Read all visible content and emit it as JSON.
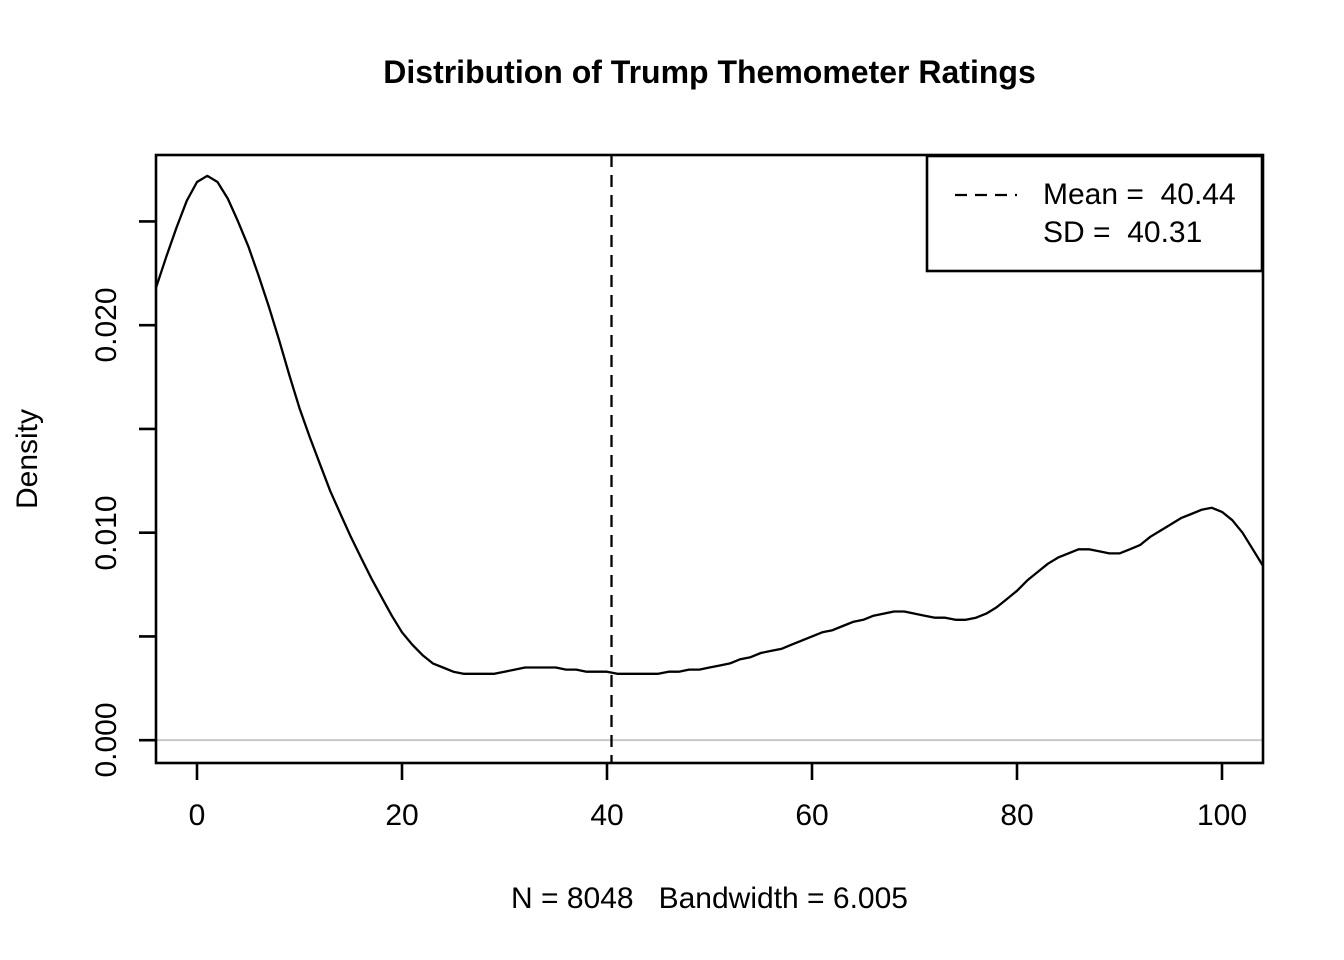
{
  "title": "Distribution of Trump Themometer Ratings",
  "colors": {
    "background": "#ffffff",
    "foreground": "#000000",
    "zero_line": "#c9c9c9"
  },
  "chart_data": {
    "type": "line",
    "subtype": "kernel-density",
    "title": "Distribution of Trump Themometer Ratings",
    "xlabel": "N = 8048   Bandwidth = 6.005",
    "ylabel": "Density",
    "n": 8048,
    "bandwidth": 6.005,
    "mean": 40.44,
    "sd": 40.31,
    "grid": false,
    "xlim": [
      -4,
      104
    ],
    "ylim": [
      -0.0011,
      0.0282
    ],
    "x_ticks": [
      {
        "value": 0,
        "label": "0"
      },
      {
        "value": 20,
        "label": "20"
      },
      {
        "value": 40,
        "label": "40"
      },
      {
        "value": 60,
        "label": "60"
      },
      {
        "value": 80,
        "label": "80"
      },
      {
        "value": 100,
        "label": "100"
      }
    ],
    "y_ticks": [
      {
        "value": 0.0,
        "label": "0.000"
      },
      {
        "value": 0.005,
        "label": ""
      },
      {
        "value": 0.01,
        "label": "0.010"
      },
      {
        "value": 0.015,
        "label": ""
      },
      {
        "value": 0.02,
        "label": "0.020"
      },
      {
        "value": 0.025,
        "label": ""
      }
    ],
    "legend": {
      "position": "topright",
      "entries": [
        {
          "label": "Mean =  40.44",
          "line_style": "dashed"
        },
        {
          "label": "SD =  40.31",
          "line_style": null
        }
      ]
    },
    "reference_lines": [
      {
        "orientation": "vertical",
        "value": 40.44,
        "style": "dashed",
        "color": "#000000"
      },
      {
        "orientation": "horizontal",
        "value": 0,
        "style": "solid",
        "color": "#c9c9c9"
      }
    ],
    "series": [
      {
        "name": "density",
        "color": "#000000",
        "x": [
          -4,
          -3,
          -2,
          -1,
          0,
          1,
          2,
          3,
          4,
          5,
          6,
          7,
          8,
          9,
          10,
          11,
          12,
          13,
          14,
          15,
          16,
          17,
          18,
          19,
          20,
          21,
          22,
          23,
          24,
          25,
          26,
          27,
          28,
          29,
          30,
          31,
          32,
          33,
          34,
          35,
          36,
          37,
          38,
          39,
          40,
          41,
          42,
          43,
          44,
          45,
          46,
          47,
          48,
          49,
          50,
          51,
          52,
          53,
          54,
          55,
          56,
          57,
          58,
          59,
          60,
          61,
          62,
          63,
          64,
          65,
          66,
          67,
          68,
          69,
          70,
          71,
          72,
          73,
          74,
          75,
          76,
          77,
          78,
          79,
          80,
          81,
          82,
          83,
          84,
          85,
          86,
          87,
          88,
          89,
          90,
          91,
          92,
          93,
          94,
          95,
          96,
          97,
          98,
          99,
          100,
          101,
          102,
          103,
          104
        ],
        "y": [
          0.0218,
          0.0233,
          0.0247,
          0.026,
          0.0269,
          0.0272,
          0.0269,
          0.0261,
          0.025,
          0.0238,
          0.0224,
          0.0209,
          0.0193,
          0.0176,
          0.016,
          0.0146,
          0.0133,
          0.012,
          0.0109,
          0.0098,
          0.0088,
          0.0078,
          0.0069,
          0.006,
          0.0052,
          0.0046,
          0.0041,
          0.0037,
          0.0035,
          0.0033,
          0.0032,
          0.0032,
          0.0032,
          0.0032,
          0.0033,
          0.0034,
          0.0035,
          0.0035,
          0.0035,
          0.0035,
          0.0034,
          0.0034,
          0.0033,
          0.0033,
          0.0033,
          0.0032,
          0.0032,
          0.0032,
          0.0032,
          0.0032,
          0.0033,
          0.0033,
          0.0034,
          0.0034,
          0.0035,
          0.0036,
          0.0037,
          0.0039,
          0.004,
          0.0042,
          0.0043,
          0.0044,
          0.0046,
          0.0048,
          0.005,
          0.0052,
          0.0053,
          0.0055,
          0.0057,
          0.0058,
          0.006,
          0.0061,
          0.0062,
          0.0062,
          0.0061,
          0.006,
          0.0059,
          0.0059,
          0.0058,
          0.0058,
          0.0059,
          0.0061,
          0.0064,
          0.0068,
          0.0072,
          0.0077,
          0.0081,
          0.0085,
          0.0088,
          0.009,
          0.0092,
          0.0092,
          0.0091,
          0.009,
          0.009,
          0.0092,
          0.0094,
          0.0098,
          0.0101,
          0.0104,
          0.0107,
          0.0109,
          0.0111,
          0.0112,
          0.011,
          0.0106,
          0.01,
          0.0092,
          0.0084
        ]
      }
    ]
  }
}
